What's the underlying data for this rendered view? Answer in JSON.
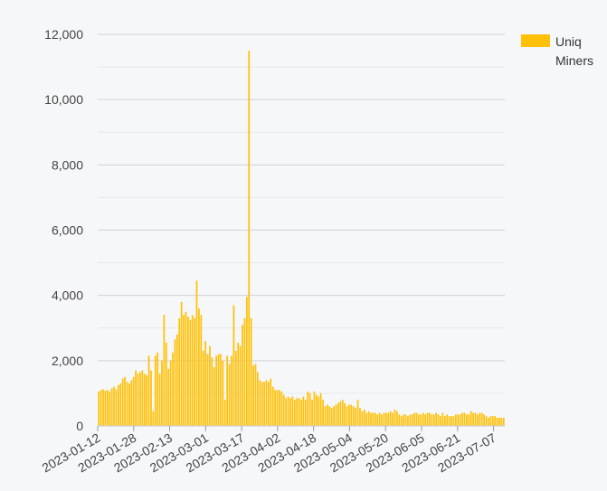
{
  "chart_data": {
    "type": "bar",
    "series": [
      {
        "name": "Uniq Miners",
        "color": "#ffc107"
      }
    ],
    "x_start": "2023-01-12",
    "x_end": "2023-07-12",
    "x_tick_labels": [
      "2023-01-12",
      "2023-01-28",
      "2023-02-13",
      "2023-03-01",
      "2023-03-17",
      "2023-04-02",
      "2023-04-18",
      "2023-05-04",
      "2023-05-20",
      "2023-06-05",
      "2023-06-21",
      "2023-07-07"
    ],
    "y_tick_labels": [
      "0",
      "2,000",
      "4,000",
      "6,000",
      "8,000",
      "10,000",
      "12,000"
    ],
    "ylim": [
      0,
      12000
    ],
    "grid": true,
    "legend_position": "top-right",
    "values": [
      1050,
      1100,
      1120,
      1080,
      1100,
      1050,
      1150,
      1200,
      1120,
      1250,
      1300,
      1450,
      1500,
      1350,
      1300,
      1400,
      1500,
      1700,
      1600,
      1650,
      1700,
      1600,
      1550,
      2150,
      1700,
      450,
      2150,
      2250,
      1600,
      2000,
      3400,
      2550,
      1750,
      2000,
      2250,
      2650,
      2800,
      3300,
      3800,
      3400,
      3500,
      3350,
      3250,
      3400,
      3300,
      4450,
      3600,
      3400,
      2300,
      2600,
      2200,
      2450,
      2100,
      1800,
      2150,
      2200,
      2200,
      2000,
      800,
      2150,
      1900,
      2150,
      3700,
      2300,
      2550,
      2450,
      3100,
      3300,
      3950,
      11500,
      3300,
      1850,
      1900,
      1650,
      1400,
      1350,
      1350,
      1400,
      1350,
      1450,
      1200,
      1100,
      1100,
      1100,
      1050,
      950,
      850,
      900,
      850,
      900,
      800,
      850,
      850,
      800,
      900,
      800,
      1050,
      1000,
      800,
      1050,
      950,
      900,
      1000,
      800,
      600,
      650,
      600,
      550,
      600,
      650,
      700,
      750,
      800,
      700,
      600,
      650,
      650,
      600,
      550,
      800,
      550,
      450,
      500,
      400,
      450,
      400,
      400,
      400,
      350,
      400,
      350,
      400,
      400,
      400,
      450,
      400,
      500,
      450,
      350,
      300,
      350,
      350,
      300,
      350,
      350,
      400,
      400,
      350,
      350,
      400,
      350,
      400,
      400,
      350,
      350,
      400,
      350,
      300,
      400,
      300,
      350,
      300,
      300,
      300,
      350,
      350,
      350,
      400,
      400,
      350,
      350,
      450,
      400,
      400,
      350,
      400,
      400,
      350,
      300,
      250,
      300,
      300,
      300,
      250,
      250,
      250,
      250
    ]
  }
}
